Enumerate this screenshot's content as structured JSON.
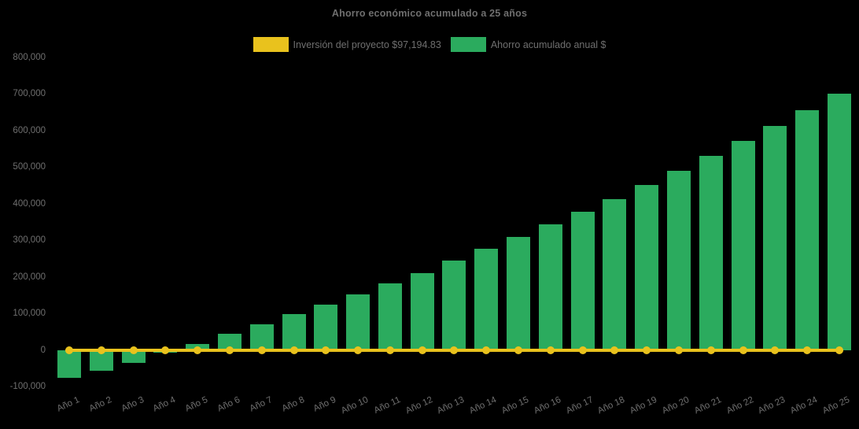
{
  "title": "Ahorro económico acumulado a 25 años",
  "colors": {
    "background": "#000000",
    "bar_green": "#2bab5e",
    "line_yellow": "#e9c21d",
    "text_gray": "#6f6f6f"
  },
  "chart_data": {
    "type": "bar",
    "title": "Ahorro económico acumulado a 25 años",
    "xlabel": "",
    "ylabel": "",
    "ylim": [
      -100000,
      800000
    ],
    "ytick_step": 100000,
    "grid": false,
    "legend_position": "top",
    "categories": [
      "Año 1",
      "Año 2",
      "Año 3",
      "Año 4",
      "Año 5",
      "Año 6",
      "Año 7",
      "Año 8",
      "Año 9",
      "Año 10",
      "Año 11",
      "Año 12",
      "Año 13",
      "Año 14",
      "Año 15",
      "Año 16",
      "Año 17",
      "Año 18",
      "Año 19",
      "Año 20",
      "Año 21",
      "Año 22",
      "Año 23",
      "Año 24",
      "Año 25"
    ],
    "yticks": [
      {
        "value": 800000,
        "label": "800,000"
      },
      {
        "value": 700000,
        "label": "700,000"
      },
      {
        "value": 600000,
        "label": "600,000"
      },
      {
        "value": 500000,
        "label": "500,000"
      },
      {
        "value": 400000,
        "label": "400,000"
      },
      {
        "value": 300000,
        "label": "300,000"
      },
      {
        "value": 200000,
        "label": "200,000"
      },
      {
        "value": 100000,
        "label": "100,000"
      },
      {
        "value": 0,
        "label": "0"
      },
      {
        "value": -100000,
        "label": "-100,000"
      }
    ],
    "series": [
      {
        "name": "Inversión del proyecto $97,194.83",
        "type": "line",
        "color": "#e9c21d",
        "marker": "circle",
        "values": [
          0,
          0,
          0,
          0,
          0,
          0,
          0,
          0,
          0,
          0,
          0,
          0,
          0,
          0,
          0,
          0,
          0,
          0,
          0,
          0,
          0,
          0,
          0,
          0,
          0
        ]
      },
      {
        "name": "Ahorro acumulado anual $",
        "type": "bar",
        "color": "#2bab5e",
        "values": [
          -77000,
          -56000,
          -35000,
          -8000,
          17000,
          45000,
          71000,
          97000,
          124000,
          152000,
          182000,
          211000,
          244000,
          277000,
          310000,
          344000,
          378000,
          413000,
          451000,
          490000,
          531000,
          572000,
          613000,
          656000,
          700000
        ]
      }
    ]
  }
}
